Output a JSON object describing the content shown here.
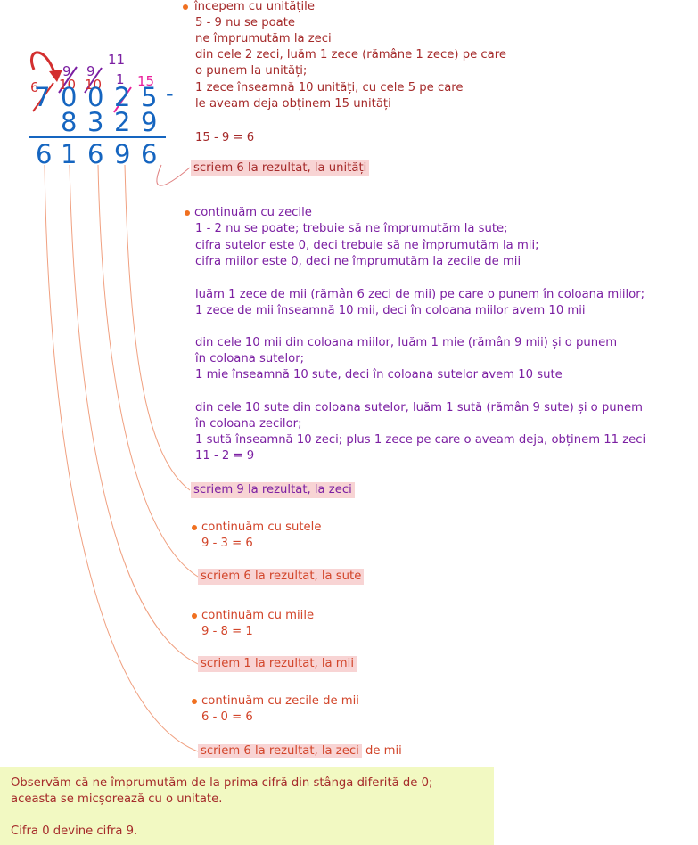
{
  "colors": {
    "blue": "#1565c0",
    "red": "#d32f2f",
    "purple": "#7b1fa2",
    "magenta": "#e91e9a",
    "text_red": "#a52a2a",
    "text_purple": "#7b1fa2",
    "highlight": "#f8d4d4",
    "note_bg": "#f2f9c2",
    "bullet": "#f07020"
  },
  "calc": {
    "top": [
      "7",
      "0",
      "0",
      "2",
      "5"
    ],
    "minus": "-",
    "bottom": [
      "8",
      "3",
      "2",
      "9"
    ],
    "result": [
      "6",
      "1",
      "6",
      "9",
      "6"
    ],
    "borrow": {
      "six": "6",
      "ten_a": "10",
      "ten_b": "10",
      "nine_a": "9",
      "nine_b": "9",
      "eleven": "11",
      "one": "1",
      "fifteen": "15"
    }
  },
  "step1": {
    "lines": [
      "începem cu unitățile",
      "5 - 9 nu se poate",
      "ne împrumutăm la zeci",
      "din cele 2 zeci, luăm 1 zece (rămâne 1 zece) pe care",
      "o punem la unități;",
      "1 zece înseamnă 10 unități, cu cele 5 pe care",
      "le aveam deja obținem 15 unități"
    ],
    "calc": "15 - 9 = 6",
    "result": "scriem 6 la rezultat, la unități"
  },
  "step2": {
    "lines": [
      "continuăm cu zecile",
      "1 - 2 nu se poate; trebuie să ne împrumutăm la sute;",
      "cifra sutelor este 0, deci trebuie să ne împrumutăm la mii;",
      "cifra miilor este 0, deci ne împrumutăm la zecile de mii"
    ],
    "para2": [
      "luăm 1 zece de mii (rămân 6 zeci de mii) pe care o punem în coloana miilor;",
      "1 zece de mii înseamnă 10 mii, deci în coloana miilor avem 10 mii"
    ],
    "para3": [
      "din cele 10 mii din coloana miilor, luăm 1 mie (rămân 9 mii) și o punem",
      "în coloana sutelor;",
      "1 mie înseamnă 10 sute, deci în coloana sutelor avem 10 sute"
    ],
    "para4": [
      "din cele 10 sute din coloana sutelor, luăm 1 sută (rămân 9 sute) și o punem",
      "în coloana zecilor;",
      "1 sută înseamnă 10 zeci; plus 1 zece pe care o aveam deja, obținem 11 zeci",
      "11 - 2 = 9"
    ],
    "result": "scriem 9 la rezultat, la zeci"
  },
  "step3": {
    "lines": [
      "continuăm cu sutele",
      "9 - 3 = 6"
    ],
    "result": "scriem 6 la rezultat, la sute"
  },
  "step4": {
    "lines": [
      "continuăm cu miile",
      "9 - 8 = 1"
    ],
    "result": "scriem 1 la rezultat, la mii"
  },
  "step5": {
    "lines": [
      "continuăm cu zecile de mii",
      "6 - 0 = 6"
    ],
    "result_hl": "scriem 6 la rezultat, la zeci",
    "result_tail": " de mii"
  },
  "note": {
    "lines": [
      "Observăm că ne împrumutăm de la prima cifră din stânga diferită de 0;",
      "aceasta se micșorează cu o unitate."
    ],
    "last": "Cifra 0 devine cifra 9."
  }
}
